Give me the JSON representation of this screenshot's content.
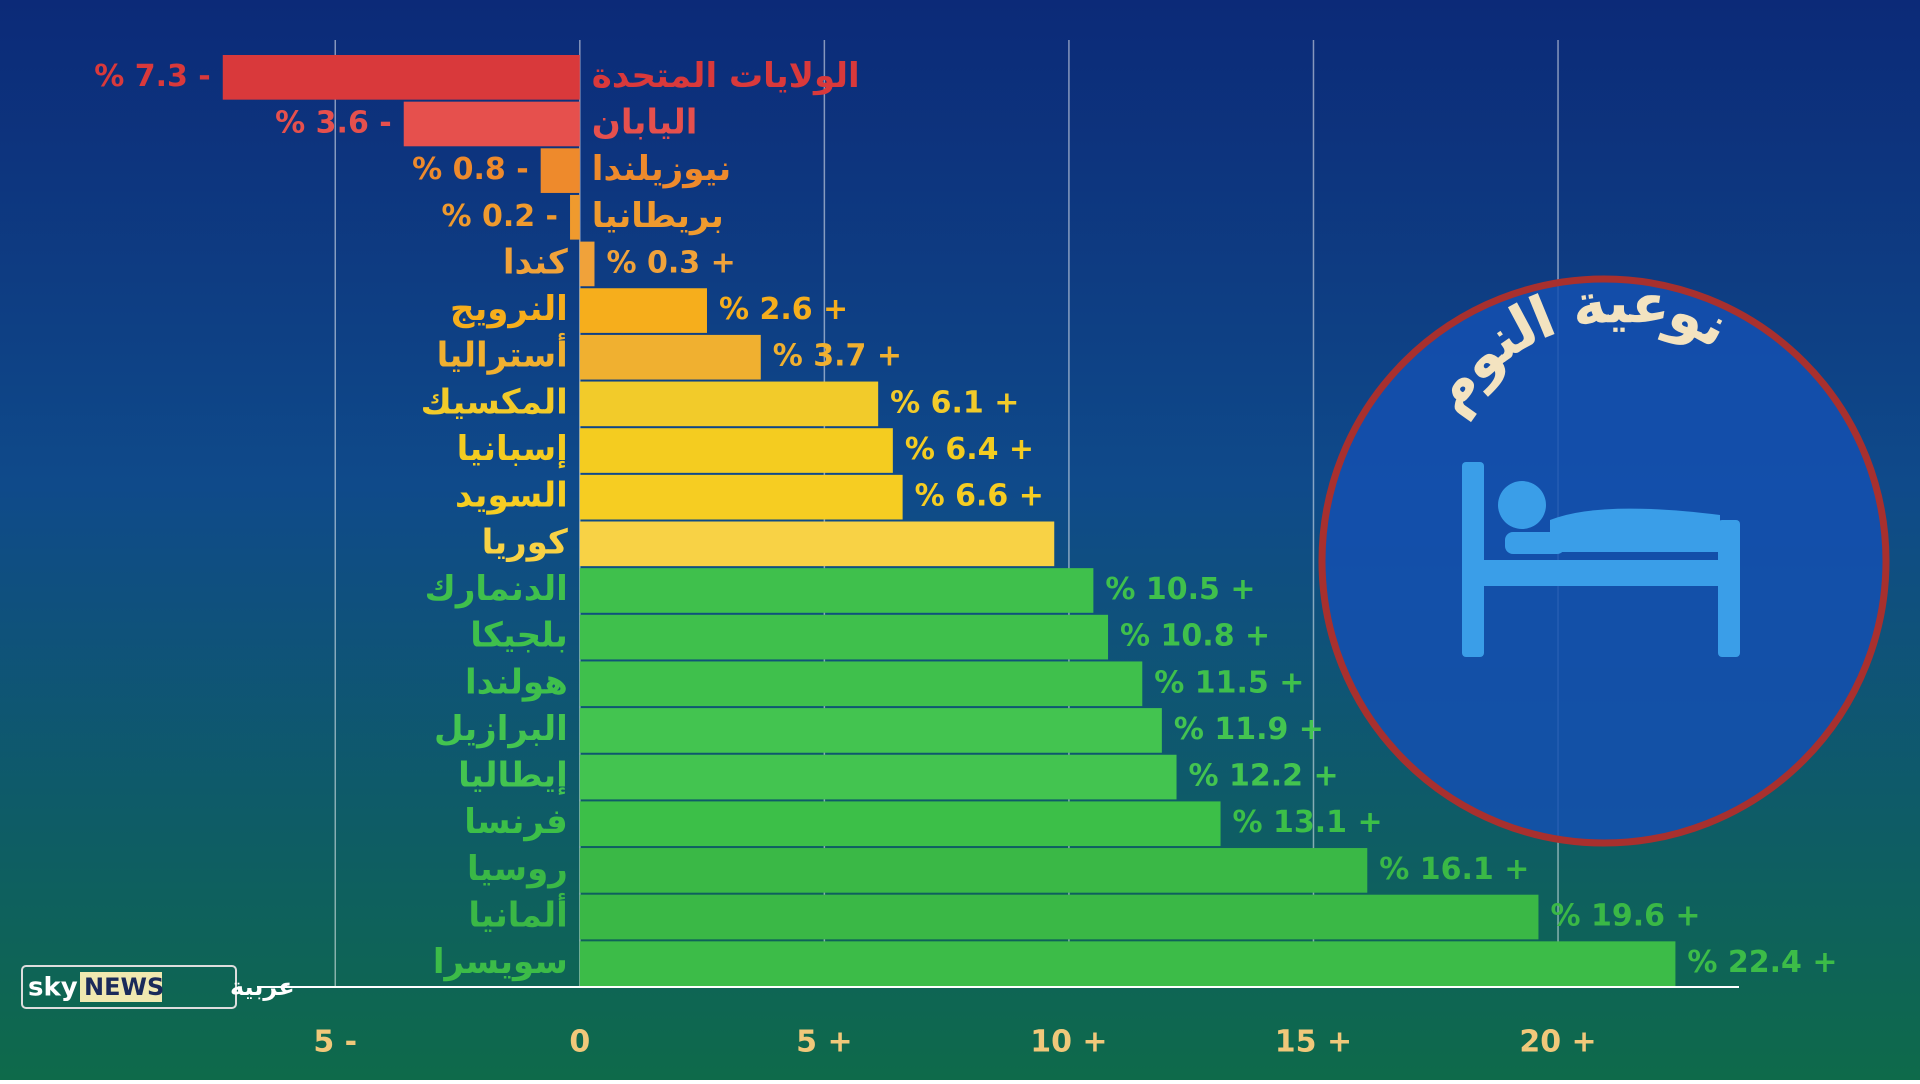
{
  "chart_data": {
    "type": "bar",
    "orientation": "horizontal",
    "title": "نوعية النوم",
    "categories": [
      "الولايات المتحدة",
      "اليابان",
      "نيوزيلندا",
      "بريطانيا",
      "كندا",
      "النرويج",
      "أستراليا",
      "المكسيك",
      "إسبانيا",
      "السويد",
      "كوريا",
      "الدنمارك",
      "بلجيكا",
      "هولندا",
      "البرازيل",
      "إيطاليا",
      "فرنسا",
      "روسيا",
      "ألمانيا",
      "سويسرا"
    ],
    "values": [
      -7.3,
      -3.6,
      -0.8,
      -0.2,
      0.3,
      2.6,
      3.7,
      6.1,
      6.4,
      6.6,
      9.7,
      10.5,
      10.8,
      11.5,
      11.9,
      12.2,
      13.1,
      16.1,
      19.6,
      22.4
    ],
    "value_labels": [
      "% 7.3 -",
      "% 3.6 -",
      "% 0.8 -",
      "% 0.2 -",
      "% 0.3 +",
      "% 2.6 +",
      "% 3.7 +",
      "% 6.1 +",
      "% 6.4 +",
      "% 6.6 +",
      null,
      "% 10.5 +",
      "% 10.8 +",
      "% 11.5 +",
      "% 11.9 +",
      "% 12.2 +",
      "% 13.1 +",
      "% 16.1 +",
      "% 19.6 +",
      "% 22.4 +"
    ],
    "colors": [
      "#d9393b",
      "#e6504d",
      "#ee8a2c",
      "#ef9a2e",
      "#f0a23a",
      "#f6ae1c",
      "#f0b030",
      "#f2cb2a",
      "#f4cc20",
      "#f6cd22",
      "#f8d245",
      "#3fc04c",
      "#3fc04c",
      "#3fc04c",
      "#43c450",
      "#43c450",
      "#3cbf48",
      "#3ab846",
      "#3ab846",
      "#3cbc48"
    ],
    "xlim": [
      -6.6,
      23.7
    ],
    "xticks": [
      {
        "value": -5,
        "label": "5 -"
      },
      0,
      {
        "value": 5,
        "label": "5 +"
      },
      {
        "value": 10,
        "label": "10 +"
      },
      {
        "value": 15,
        "label": "15 +"
      },
      {
        "value": 20,
        "label": "20 +"
      }
    ],
    "grid": true
  },
  "logo": {
    "sky": "sky",
    "news": "NEWS",
    "arabic": "عربية"
  }
}
